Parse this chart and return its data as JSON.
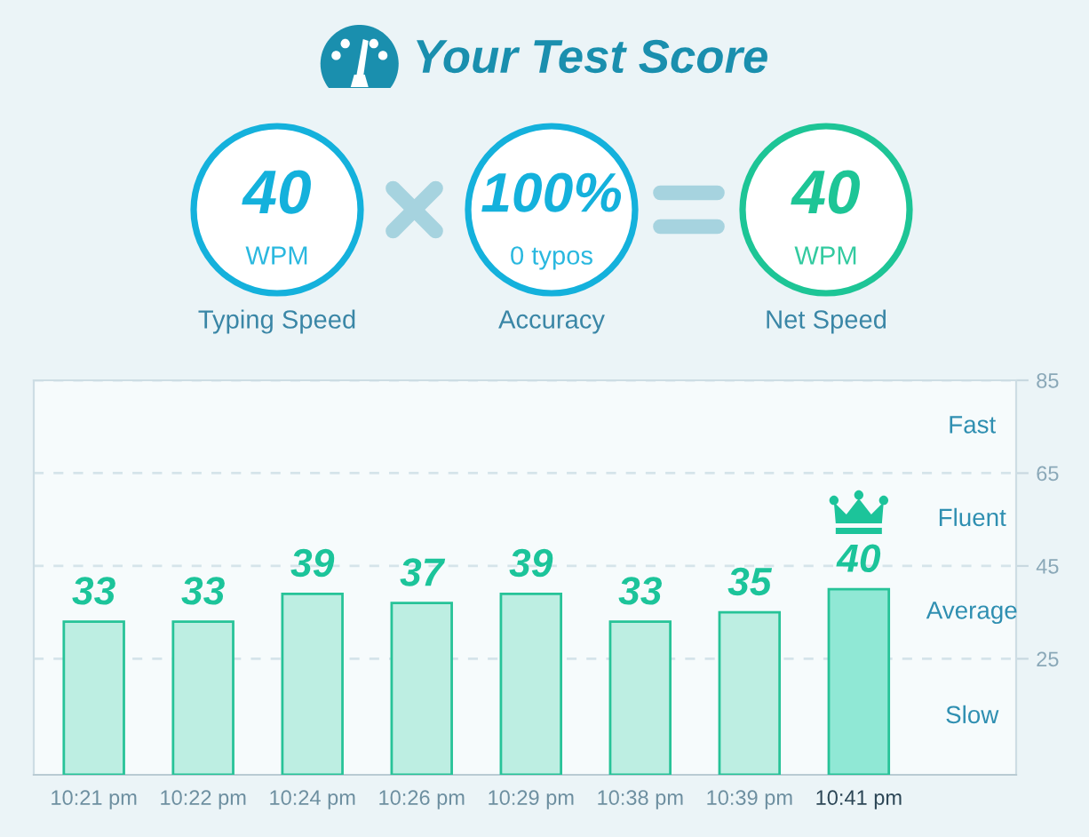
{
  "chart_data": [
    {
      "type": "other",
      "title": "Your Test Score",
      "annotations": [
        "40",
        "WPM",
        "Typing Speed",
        "100%",
        "0 typos",
        "Accuracy",
        "40",
        "WPM",
        "Net Speed"
      ],
      "colors": [
        "#14b1dc",
        "#14b1dc",
        "#1dc596"
      ]
    },
    {
      "type": "bar",
      "categories": [
        "10:21 pm",
        "10:22 pm",
        "10:24 pm",
        "10:26 pm",
        "10:29 pm",
        "10:38 pm",
        "10:39 pm",
        "10:41 pm"
      ],
      "values": [
        33,
        33,
        39,
        37,
        39,
        33,
        35,
        40
      ],
      "colors": [
        "#bdeee2",
        "#bdeee2",
        "#bdeee2",
        "#bdeee2",
        "#bdeee2",
        "#bdeee2",
        "#bdeee2",
        "#90e8d5"
      ],
      "data_labels": true,
      "ylim": [
        0,
        85
      ],
      "yticks": [
        25,
        45,
        65,
        85
      ],
      "grid": "y",
      "annotations": [
        "Fast",
        "Fluent",
        "Average",
        "Slow"
      ]
    }
  ]
}
